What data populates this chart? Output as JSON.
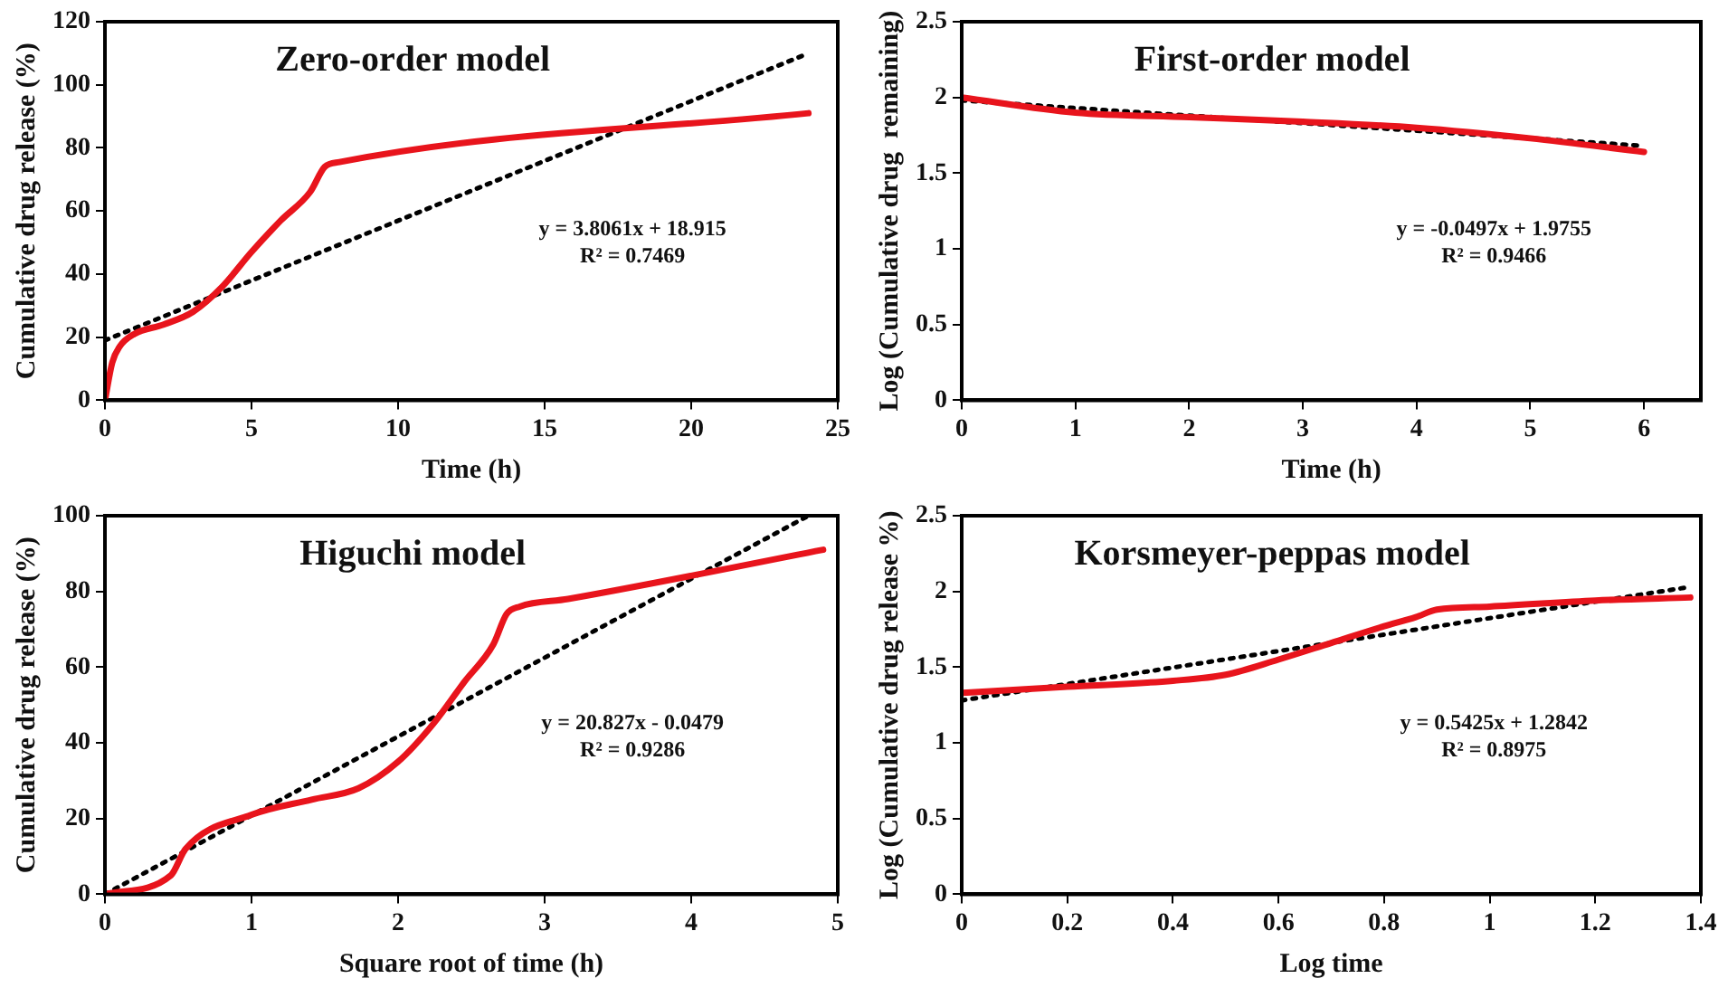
{
  "chart_data": [
    {
      "type": "line",
      "title": "Zero-order model",
      "xlabel": "Time (h)",
      "ylabel": "Cumulative drug release (%)",
      "annotations": [
        "y = 3.8061x + 18.915",
        "R² = 0.7469"
      ],
      "xlim": [
        0,
        25
      ],
      "xticks": [
        0,
        5,
        10,
        15,
        20,
        25
      ],
      "ylim": [
        0,
        120
      ],
      "yticks": [
        0,
        20,
        40,
        60,
        80,
        100,
        120
      ],
      "grid": false,
      "legend": false,
      "marker": "none",
      "series": [
        {
          "color": "#e8141c",
          "x": [
            0,
            0.25,
            0.5,
            1,
            2,
            3,
            4,
            5,
            6,
            7,
            7.5,
            8,
            24
          ],
          "values": [
            0,
            12,
            17,
            21,
            24,
            28,
            36,
            47,
            57,
            66,
            74,
            75.5,
            91
          ]
        },
        {
          "type": "line",
          "line_style": "dotted",
          "color": "#000000",
          "x": [
            0,
            24
          ],
          "values": [
            19,
            110
          ]
        }
      ]
    },
    {
      "type": "line",
      "title": "First-order model",
      "xlabel": "Time (h)",
      "ylabel": "Log (Cumulative drug  remaining)",
      "annotations": [
        "y = -0.0497x + 1.9755",
        "R² = 0.9466"
      ],
      "xlim": [
        0,
        6.5
      ],
      "xticks": [
        0,
        1,
        2,
        3,
        4,
        5,
        6
      ],
      "ylim": [
        0,
        2.5
      ],
      "yticks": [
        0,
        0.5,
        1,
        1.5,
        2,
        2.5
      ],
      "grid": false,
      "legend": false,
      "marker": "none",
      "series": [
        {
          "color": "#e8141c",
          "x": [
            0,
            1,
            2,
            3,
            4,
            5,
            6
          ],
          "values": [
            2.0,
            1.9,
            1.87,
            1.84,
            1.8,
            1.73,
            1.64
          ]
        },
        {
          "type": "line",
          "line_style": "dotted",
          "color": "#000000",
          "x": [
            0,
            6
          ],
          "values": [
            1.98,
            1.68
          ]
        }
      ]
    },
    {
      "type": "line",
      "title": "Higuchi model",
      "xlabel": "Square root of time (h)",
      "ylabel": "Cumulative drug release (%)",
      "annotations": [
        "y = 20.827x - 0.0479",
        "R² = 0.9286"
      ],
      "xlim": [
        0,
        5
      ],
      "xticks": [
        0,
        1,
        2,
        3,
        4,
        5
      ],
      "ylim": [
        0,
        100
      ],
      "yticks": [
        0,
        20,
        40,
        60,
        80,
        100
      ],
      "grid": false,
      "legend": false,
      "marker": "none",
      "series": [
        {
          "color": "#e8141c",
          "x": [
            0,
            0.45,
            0.55,
            1,
            1.41,
            1.73,
            2,
            2.24,
            2.45,
            2.65,
            2.74,
            2.83,
            3.16,
            4.9
          ],
          "values": [
            0,
            5,
            12,
            21,
            25,
            28,
            35,
            45,
            56,
            66,
            74,
            76,
            78,
            91
          ]
        },
        {
          "type": "line",
          "line_style": "dotted",
          "color": "#000000",
          "x": [
            0,
            4.8
          ],
          "values": [
            0,
            100
          ]
        }
      ]
    },
    {
      "type": "line",
      "title": "Korsmeyer-peppas model",
      "xlabel": "Log time",
      "ylabel": "Log (Cumulative drug release %)",
      "annotations": [
        "y = 0.5425x + 1.2842",
        "R² = 0.8975"
      ],
      "xlim": [
        0,
        1.4
      ],
      "xticks": [
        0,
        0.2,
        0.4,
        0.6,
        0.8,
        1,
        1.2,
        1.4
      ],
      "ylim": [
        0,
        2.5
      ],
      "yticks": [
        0,
        0.5,
        1,
        1.5,
        2,
        2.5
      ],
      "grid": false,
      "legend": false,
      "marker": "none",
      "series": [
        {
          "color": "#e8141c",
          "x": [
            0,
            0.2,
            0.4,
            0.5,
            0.6,
            0.7,
            0.8,
            0.86,
            0.9,
            1,
            1.2,
            1.38
          ],
          "values": [
            1.33,
            1.37,
            1.41,
            1.45,
            1.55,
            1.66,
            1.77,
            1.83,
            1.88,
            1.9,
            1.94,
            1.96
          ]
        },
        {
          "type": "line",
          "line_style": "dotted",
          "color": "#000000",
          "x": [
            0,
            1.38
          ],
          "values": [
            1.28,
            2.03
          ]
        }
      ]
    }
  ]
}
